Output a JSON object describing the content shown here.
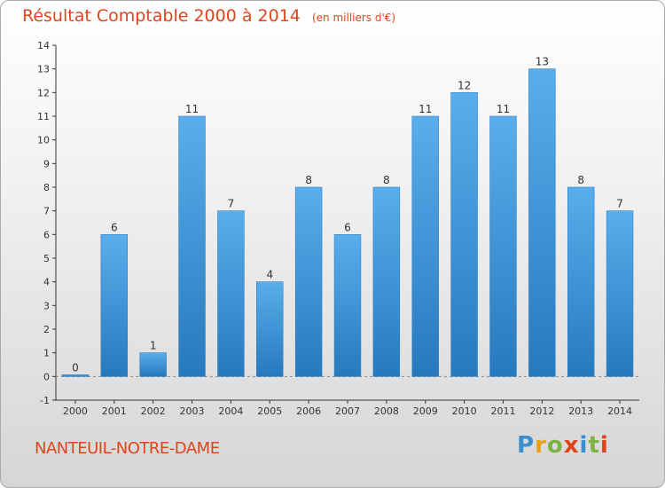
{
  "header": {
    "title": "Résultat Comptable 2000 à 2014",
    "unit": "(en milliers d'€)"
  },
  "footer": {
    "commune": "NANTEUIL-NOTRE-DAME",
    "logo": "Proxiti"
  },
  "colors": {
    "accent": "#e0441c",
    "bar_light": "#5aaeec",
    "bar_dark": "#2779bd",
    "axis": "#333333"
  },
  "chart_data": {
    "type": "bar",
    "title": "Résultat Comptable 2000 à 2014",
    "subtitle": "(en milliers d'€)",
    "categories": [
      "2000",
      "2001",
      "2002",
      "2003",
      "2004",
      "2005",
      "2006",
      "2007",
      "2008",
      "2009",
      "2010",
      "2011",
      "2012",
      "2013",
      "2014"
    ],
    "values": [
      0,
      6,
      1,
      11,
      7,
      4,
      8,
      6,
      8,
      11,
      12,
      11,
      13,
      8,
      7
    ],
    "ylim": [
      -1,
      14
    ],
    "yticks": [
      -1,
      0,
      1,
      2,
      3,
      4,
      5,
      6,
      7,
      8,
      9,
      10,
      11,
      12,
      13,
      14
    ],
    "grid": false,
    "data_labels": true
  }
}
